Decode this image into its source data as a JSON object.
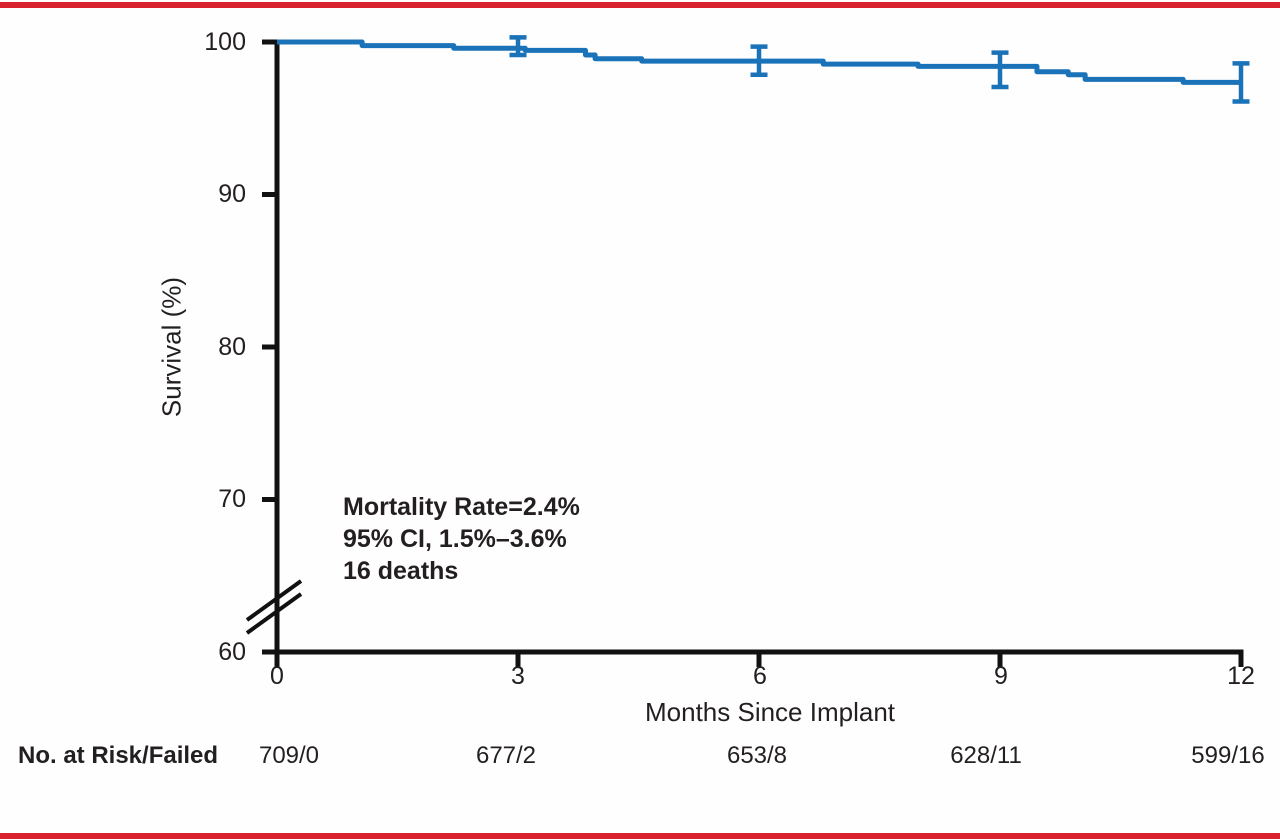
{
  "colors": {
    "curve_blue": "#1a72b8",
    "border_red": "#d8202e",
    "axis_black": "#111111",
    "text": "#231f20"
  },
  "chart_data": {
    "type": "line",
    "subtype": "kaplan-meier-step",
    "title": "",
    "xlabel": "Months Since Implant",
    "ylabel": "Survival (%)",
    "xlim": [
      0,
      12
    ],
    "ylim": [
      60,
      100
    ],
    "y_axis_break_below": 70,
    "grid": false,
    "legend": "none",
    "x_ticks": [
      0,
      3,
      6,
      9,
      12
    ],
    "y_ticks": [
      100,
      90,
      80,
      70,
      60
    ],
    "series": [
      {
        "name": "Survival",
        "step_points": [
          [
            0,
            100
          ],
          [
            1.06,
            99.76
          ],
          [
            2.2,
            99.59
          ],
          [
            3.09,
            99.45
          ],
          [
            3.84,
            99.15
          ],
          [
            3.96,
            98.9
          ],
          [
            4.54,
            98.75
          ],
          [
            6.8,
            98.55
          ],
          [
            7.98,
            98.4
          ],
          [
            9.46,
            98.05
          ],
          [
            9.85,
            97.85
          ],
          [
            10.06,
            97.55
          ],
          [
            11.28,
            97.35
          ],
          [
            12,
            97.35
          ]
        ]
      }
    ],
    "error_bars": [
      {
        "x": 3,
        "y": 99.59,
        "lo": 99.15,
        "hi": 100.3
      },
      {
        "x": 6,
        "y": 98.7,
        "lo": 97.85,
        "hi": 99.7
      },
      {
        "x": 9,
        "y": 98.4,
        "lo": 97.05,
        "hi": 99.3
      },
      {
        "x": 12,
        "y": 97.35,
        "lo": 96.1,
        "hi": 98.6
      }
    ],
    "annotation_lines": [
      "Mortality Rate=2.4%",
      "95% CI, 1.5%–3.6%",
      "16 deaths"
    ]
  },
  "risk_table": {
    "label": "No. at Risk/Failed",
    "values": [
      "709/0",
      "677/2",
      "653/8",
      "628/11",
      "599/16"
    ]
  }
}
